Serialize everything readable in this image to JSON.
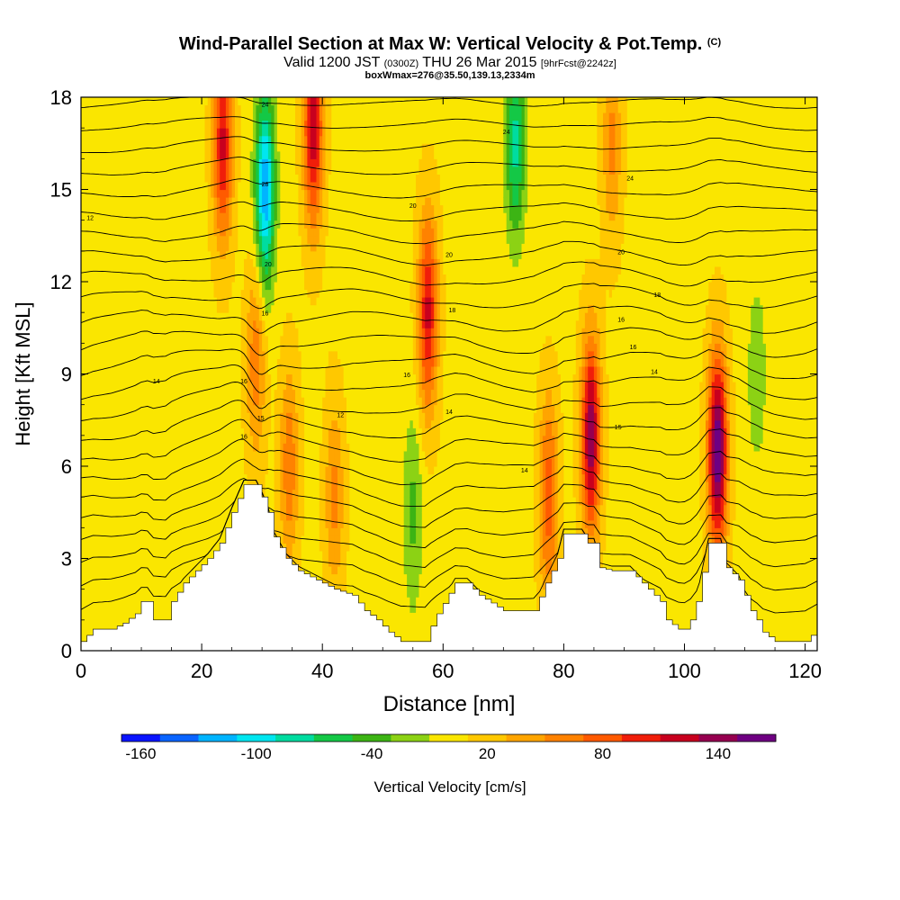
{
  "header": {
    "title_main": "Wind-Parallel Section at Max W: Vertical Velocity & Pot.Temp.",
    "title_mark": "(C)",
    "valid_prefix": "Valid 1200 JST",
    "valid_utc": "(0300Z)",
    "valid_date": "THU 26 Mar 2015",
    "valid_fcst": "[9hrFcst@2242z]",
    "box_info": "boxWmax=276@35.50,139.13,2334m"
  },
  "chart_data": {
    "type": "heatmap",
    "xlabel": "Distance [nm]",
    "ylabel": "Height [Kft MSL]",
    "xlim": [
      0,
      122
    ],
    "ylim": [
      0,
      18
    ],
    "xticks": [
      0,
      20,
      40,
      60,
      80,
      100,
      120
    ],
    "yticks": [
      0,
      3,
      6,
      9,
      12,
      15,
      18
    ],
    "colorbar": {
      "label": "Vertical Velocity [cm/s]",
      "levels": [
        -170,
        -150,
        -130,
        -110,
        -90,
        -70,
        -50,
        -30,
        -10,
        10,
        30,
        50,
        70,
        90,
        110,
        130,
        150,
        170
      ],
      "colors": [
        "#0a14ff",
        "#0a64ff",
        "#00b4ff",
        "#00e6f0",
        "#00dca0",
        "#14c846",
        "#3cb414",
        "#8cd214",
        "#fae600",
        "#ffc800",
        "#ffa500",
        "#ff8200",
        "#ff5a00",
        "#f01e0a",
        "#c8001e",
        "#960050",
        "#6e0082"
      ],
      "tick_labels": [
        "-160",
        "-100",
        "-40",
        "20",
        "80",
        "140"
      ],
      "tick_values": [
        -160,
        -100,
        -40,
        20,
        80,
        140
      ]
    },
    "terrain_kft": [
      [
        0,
        0.3
      ],
      [
        2,
        0.7
      ],
      [
        5,
        0.7
      ],
      [
        7,
        0.9
      ],
      [
        9,
        1.2
      ],
      [
        10,
        1.6
      ],
      [
        11,
        1.6
      ],
      [
        12,
        1.0
      ],
      [
        14,
        1.0
      ],
      [
        15,
        1.6
      ],
      [
        17,
        2.2
      ],
      [
        19,
        2.6
      ],
      [
        21,
        3.0
      ],
      [
        23,
        3.5
      ],
      [
        25,
        4.5
      ],
      [
        27,
        5.4
      ],
      [
        29,
        5.4
      ],
      [
        30,
        5.0
      ],
      [
        31,
        4.5
      ],
      [
        32,
        3.7
      ],
      [
        34,
        3.0
      ],
      [
        36,
        2.6
      ],
      [
        38,
        2.4
      ],
      [
        40,
        2.2
      ],
      [
        42,
        2.0
      ],
      [
        45,
        1.8
      ],
      [
        47,
        1.3
      ],
      [
        49,
        1.0
      ],
      [
        51,
        0.6
      ],
      [
        53,
        0.3
      ],
      [
        57,
        0.3
      ],
      [
        58,
        0.8
      ],
      [
        59,
        1.2
      ],
      [
        62,
        2.2
      ],
      [
        64,
        2.2
      ],
      [
        66,
        1.8
      ],
      [
        70,
        1.3
      ],
      [
        72,
        1.3
      ],
      [
        75,
        1.3
      ],
      [
        77,
        2.2
      ],
      [
        79,
        3.0
      ],
      [
        80,
        3.8
      ],
      [
        83,
        3.8
      ],
      [
        84,
        3.5
      ],
      [
        85,
        3.5
      ],
      [
        86,
        2.7
      ],
      [
        88,
        2.6
      ],
      [
        91,
        2.6
      ],
      [
        94,
        2.0
      ],
      [
        96,
        1.6
      ],
      [
        97,
        1.0
      ],
      [
        99,
        0.7
      ],
      [
        100,
        0.7
      ],
      [
        101,
        1.0
      ],
      [
        102,
        1.6
      ],
      [
        104,
        3.5
      ],
      [
        106,
        3.5
      ],
      [
        107,
        2.7
      ],
      [
        109,
        2.3
      ],
      [
        110,
        1.8
      ],
      [
        111,
        1.3
      ],
      [
        112,
        1.0
      ],
      [
        113,
        0.6
      ],
      [
        115,
        0.3
      ],
      [
        120,
        0.3
      ],
      [
        122,
        0.7
      ]
    ],
    "w_centers_cm_s": [
      {
        "x": 23.5,
        "y": 16.5,
        "w": 110
      },
      {
        "x": 30.5,
        "y": 15.0,
        "w": -130
      },
      {
        "x": 38.5,
        "y": 17.0,
        "w": 120
      },
      {
        "x": 57.5,
        "y": 11.0,
        "w": 110
      },
      {
        "x": 72.0,
        "y": 16.5,
        "w": -80
      },
      {
        "x": 77.5,
        "y": 5.0,
        "w": 80
      },
      {
        "x": 84.5,
        "y": 7.0,
        "w": 140
      },
      {
        "x": 105.5,
        "y": 6.5,
        "w": 165
      },
      {
        "x": 29.0,
        "y": 9.5,
        "w": 60
      },
      {
        "x": 34.5,
        "y": 6.0,
        "w": 60
      },
      {
        "x": 42.0,
        "y": 5.0,
        "w": 50
      },
      {
        "x": 55.0,
        "y": 4.5,
        "w": -40
      },
      {
        "x": 88.0,
        "y": 16.5,
        "w": 50
      },
      {
        "x": 112.0,
        "y": 9.0,
        "w": -30
      }
    ],
    "theta_labels": [
      {
        "x": 1.5,
        "y": 14.0,
        "text": "12"
      },
      {
        "x": 12.5,
        "y": 8.7,
        "text": "14"
      },
      {
        "x": 27.0,
        "y": 8.7,
        "text": "16"
      },
      {
        "x": 27.0,
        "y": 6.9,
        "text": "16"
      },
      {
        "x": 29.8,
        "y": 7.5,
        "text": "15"
      },
      {
        "x": 30.5,
        "y": 10.9,
        "text": "16"
      },
      {
        "x": 31.0,
        "y": 12.5,
        "text": "20"
      },
      {
        "x": 30.5,
        "y": 15.1,
        "text": "28"
      },
      {
        "x": 30.5,
        "y": 17.7,
        "text": "24"
      },
      {
        "x": 43.0,
        "y": 7.6,
        "text": "12"
      },
      {
        "x": 54.0,
        "y": 8.9,
        "text": "16"
      },
      {
        "x": 55.0,
        "y": 14.4,
        "text": "20"
      },
      {
        "x": 61.5,
        "y": 11.0,
        "text": "18"
      },
      {
        "x": 61.0,
        "y": 12.8,
        "text": "20"
      },
      {
        "x": 70.5,
        "y": 16.8,
        "text": "24"
      },
      {
        "x": 61.0,
        "y": 7.7,
        "text": "14"
      },
      {
        "x": 73.5,
        "y": 5.8,
        "text": "14"
      },
      {
        "x": 89.0,
        "y": 7.2,
        "text": "15"
      },
      {
        "x": 89.5,
        "y": 10.7,
        "text": "16"
      },
      {
        "x": 89.5,
        "y": 12.9,
        "text": "20"
      },
      {
        "x": 91.5,
        "y": 9.8,
        "text": "16"
      },
      {
        "x": 95.0,
        "y": 9.0,
        "text": "14"
      },
      {
        "x": 91.0,
        "y": 15.3,
        "text": "24"
      },
      {
        "x": 95.5,
        "y": 11.5,
        "text": "18"
      }
    ]
  }
}
